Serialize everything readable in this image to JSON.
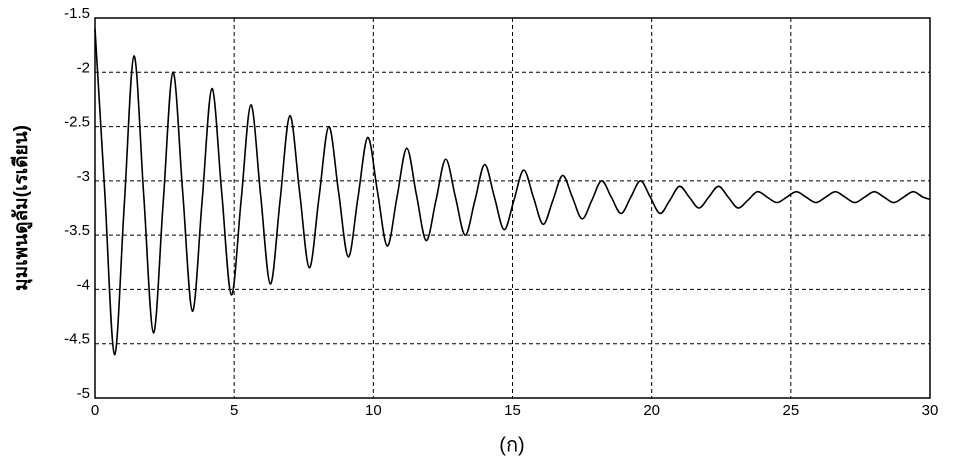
{
  "chart_data": {
    "type": "line",
    "ylabel": "มุมเพนดูลัม(เรเดียน)",
    "xlabel": "(ก)",
    "x": [
      0,
      0.35,
      0.7,
      1.05,
      1.4,
      1.75,
      2.1,
      2.45,
      2.8,
      3.15,
      3.5,
      3.85,
      4.2,
      4.55,
      4.9,
      5.25,
      5.6,
      5.95,
      6.3,
      6.65,
      7,
      7.35,
      7.7,
      8.05,
      8.4,
      8.75,
      9.1,
      9.45,
      9.8,
      10.15,
      10.5,
      10.85,
      11.2,
      11.55,
      11.9,
      12.25,
      12.6,
      12.95,
      13.3,
      13.65,
      14,
      14.35,
      14.7,
      15.05,
      15.4,
      15.75,
      16.1,
      16.45,
      16.8,
      17.15,
      17.5,
      17.85,
      18.2,
      18.55,
      18.9,
      19.25,
      19.6,
      19.95,
      20.3,
      20.65,
      21,
      21.35,
      21.7,
      22.05,
      22.4,
      22.75,
      23.1,
      23.45,
      23.8,
      24.15,
      24.5,
      24.85,
      25.2,
      25.55,
      25.9,
      26.25,
      26.6,
      26.95,
      27.3,
      27.65,
      28,
      28.35,
      28.7,
      29.05,
      29.4,
      29.75,
      30
    ],
    "values": [
      -1.6,
      -3.1,
      -4.6,
      -3.23,
      -1.85,
      -3.13,
      -4.4,
      -3.2,
      -2.0,
      -3.1,
      -4.2,
      -3.18,
      -2.15,
      -3.1,
      -4.05,
      -3.18,
      -2.3,
      -3.13,
      -3.95,
      -3.18,
      -2.4,
      -3.1,
      -3.8,
      -3.15,
      -2.5,
      -3.1,
      -3.7,
      -3.15,
      -2.6,
      -3.1,
      -3.6,
      -3.15,
      -2.7,
      -3.13,
      -3.55,
      -3.18,
      -2.8,
      -3.15,
      -3.5,
      -3.18,
      -2.85,
      -3.15,
      -3.45,
      -3.18,
      -2.9,
      -3.15,
      -3.4,
      -3.18,
      -2.95,
      -3.15,
      -3.35,
      -3.18,
      -3.0,
      -3.15,
      -3.3,
      -3.15,
      -3.0,
      -3.15,
      -3.3,
      -3.18,
      -3.05,
      -3.15,
      -3.25,
      -3.15,
      -3.05,
      -3.15,
      -3.25,
      -3.18,
      -3.1,
      -3.15,
      -3.2,
      -3.15,
      -3.1,
      -3.15,
      -3.2,
      -3.15,
      -3.1,
      -3.15,
      -3.2,
      -3.15,
      -3.1,
      -3.15,
      -3.2,
      -3.15,
      -3.1,
      -3.15,
      -3.17
    ],
    "color": "#000000",
    "xlim": [
      0,
      30
    ],
    "ylim": [
      -5,
      -1.5
    ],
    "xticks": [
      0,
      5,
      10,
      15,
      20,
      25,
      30
    ],
    "yticks": [
      -5,
      -4.5,
      -4,
      -3.5,
      -3,
      -2.5,
      -2,
      -1.5
    ],
    "grid": true
  }
}
